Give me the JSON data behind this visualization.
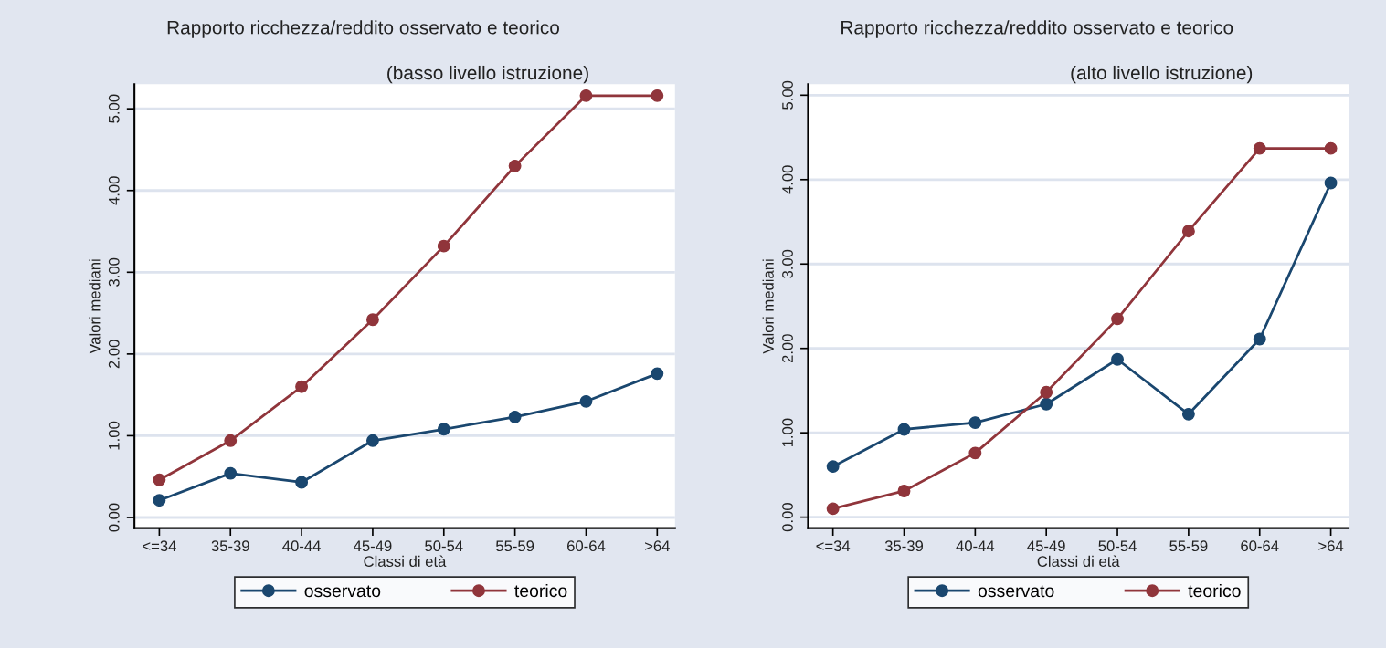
{
  "chart_data": [
    {
      "type": "line",
      "title": "Rapporto ricchezza/reddito osservato e teorico",
      "subtitle": "(basso livello istruzione)",
      "xlabel": "Classi di età",
      "ylabel": "Valori mediani",
      "categories": [
        "<=34",
        "35-39",
        "40-44",
        "45-49",
        "50-54",
        "55-59",
        "60-64",
        ">64"
      ],
      "series": [
        {
          "name": "osservato",
          "color": "#1a476f",
          "values": [
            0.21,
            0.54,
            0.43,
            0.94,
            1.08,
            1.23,
            1.42,
            1.76
          ]
        },
        {
          "name": "teorico",
          "color": "#90353b",
          "values": [
            0.46,
            0.94,
            1.6,
            2.42,
            3.32,
            4.3,
            5.16,
            5.16
          ]
        }
      ],
      "ylim": [
        -0.13,
        5.3
      ],
      "yticks": [
        {
          "value": 0,
          "label": "0.00"
        },
        {
          "value": 1,
          "label": "1.00"
        },
        {
          "value": 2,
          "label": "2.00"
        },
        {
          "value": 3,
          "label": "3.00"
        },
        {
          "value": 4,
          "label": "4.00"
        },
        {
          "value": 5,
          "label": "5.00"
        }
      ],
      "grid": "y",
      "legend": "bottom",
      "marker": "circle",
      "line_style": "solid"
    },
    {
      "type": "line",
      "title": "Rapporto ricchezza/reddito osservato e teorico",
      "subtitle": "(alto livello istruzione)",
      "xlabel": "Classi di età",
      "ylabel": "Valori mediani",
      "categories": [
        "<=34",
        "35-39",
        "40-44",
        "45-49",
        "50-54",
        "55-59",
        "60-64",
        ">64"
      ],
      "series": [
        {
          "name": "osservato",
          "color": "#1a476f",
          "values": [
            0.6,
            1.04,
            1.12,
            1.34,
            1.87,
            1.22,
            2.11,
            3.96
          ]
        },
        {
          "name": "teorico",
          "color": "#90353b",
          "values": [
            0.1,
            0.31,
            0.76,
            1.48,
            2.35,
            3.39,
            4.37,
            4.37
          ]
        }
      ],
      "ylim": [
        -0.13,
        5.13
      ],
      "yticks": [
        {
          "value": 0,
          "label": "0.00"
        },
        {
          "value": 1,
          "label": "1.00"
        },
        {
          "value": 2,
          "label": "2.00"
        },
        {
          "value": 3,
          "label": "3.00"
        },
        {
          "value": 4,
          "label": "4.00"
        },
        {
          "value": 5,
          "label": "5.00"
        }
      ],
      "grid": "y",
      "legend": "bottom",
      "marker": "circle",
      "line_style": "solid"
    }
  ]
}
